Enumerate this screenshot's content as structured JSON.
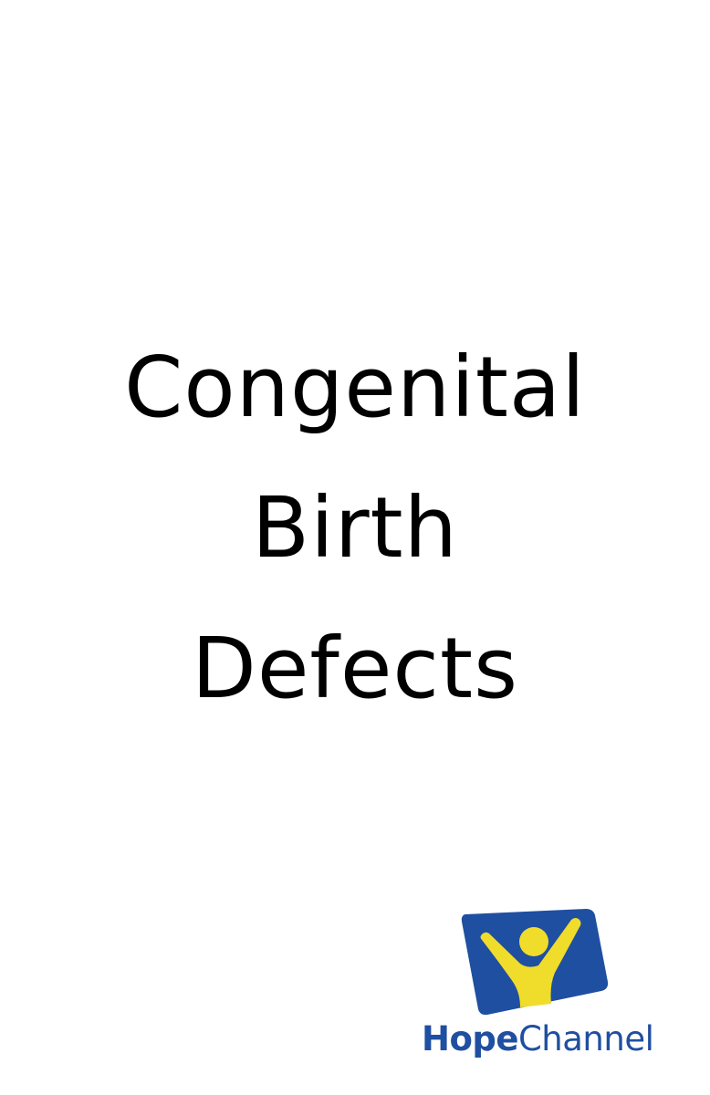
{
  "title": {
    "lines": [
      "Congenital",
      "Birth",
      "Defects"
    ]
  },
  "logo": {
    "icon": "hope-channel-person-icon",
    "word_hope": "Hope",
    "word_channel": "Channel",
    "colors": {
      "blue": "#1f4fa0",
      "yellow": "#f0dc2b"
    }
  }
}
